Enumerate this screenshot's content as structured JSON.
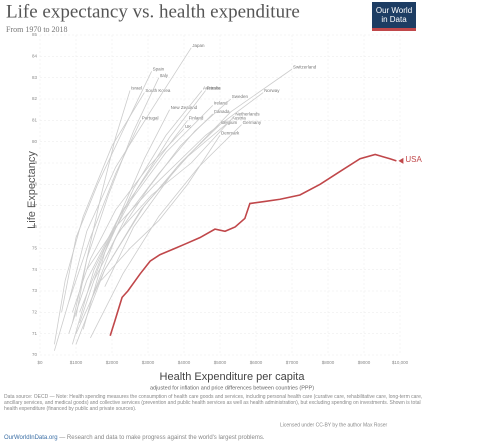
{
  "chart_data": {
    "type": "line",
    "title": "Life expectancy vs. health expenditure",
    "subtitle": "From 1970 to 2018",
    "logo": "Our World in Data",
    "y_label": "Life Expectancy",
    "x_label": "Health Expenditure per capita",
    "x_sublabel": "adjusted for inflation and price differences between countries (PPP)",
    "source": "Data source: OECD — Note: Health spending measures the consumption of health care goods and services, including personal health care (curative care, rehabilitative care, long-term care, ancillary services, and medical goods) and collective services (prevention and public health services as well as health administration), but excluding spending on investments. Shown is total health expenditure (financed by public and private sources).",
    "license": "Licensed under CC-BY by the author Max Roser",
    "footer_site": "OurWorldInData.org",
    "footer_text": " — Research and data to make progress against the world's largest problems.",
    "xlim": [
      0,
      10000
    ],
    "ylim": [
      70,
      85
    ],
    "xticks": [
      {
        "value": 0,
        "label": "$0"
      },
      {
        "value": 1000,
        "label": "$1000"
      },
      {
        "value": 2000,
        "label": "$2000"
      },
      {
        "value": 3000,
        "label": "$3000"
      },
      {
        "value": 4000,
        "label": "$4000"
      },
      {
        "value": 5000,
        "label": "$5000"
      },
      {
        "value": 6000,
        "label": "$6000"
      },
      {
        "value": 7000,
        "label": "$7000"
      },
      {
        "value": 8000,
        "label": "$8000"
      },
      {
        "value": 9000,
        "label": "$9000"
      },
      {
        "value": 10000,
        "label": "$10,000"
      }
    ],
    "yticks": [
      70,
      71,
      72,
      73,
      74,
      75,
      76,
      77,
      78,
      79,
      80,
      81,
      82,
      83,
      84,
      85
    ],
    "grid": true,
    "series": [
      {
        "name": "USA",
        "color": "#c0474a",
        "x": [
          1950,
          2080,
          2280,
          2440,
          2780,
          3060,
          3330,
          3750,
          4030,
          4440,
          4860,
          5140,
          5420,
          5690,
          5830,
          6250,
          6670,
          7220,
          7780,
          8330,
          8890,
          9310,
          9720,
          9900
        ],
        "values": [
          70.9,
          71.6,
          72.7,
          73.0,
          73.8,
          74.4,
          74.7,
          75.0,
          75.2,
          75.5,
          75.9,
          75.8,
          76.0,
          76.4,
          77.1,
          77.2,
          77.3,
          77.5,
          78.0,
          78.6,
          79.2,
          79.4,
          79.2,
          79.1
        ]
      },
      {
        "name": "Japan",
        "color": "#cccccc",
        "x": [
          800,
          1300,
          2100,
          3100,
          4200
        ],
        "values": [
          72.5,
          75.8,
          78.8,
          81.5,
          84.4
        ]
      },
      {
        "name": "Switzerland",
        "color": "#cccccc",
        "x": [
          1800,
          2600,
          3800,
          5300,
          7000
        ],
        "values": [
          73.2,
          76.0,
          78.8,
          81.4,
          83.4
        ]
      },
      {
        "name": "Spain",
        "color": "#cccccc",
        "x": [
          600,
          1000,
          1600,
          2300,
          3100
        ],
        "values": [
          72.0,
          75.5,
          78.0,
          80.5,
          83.3
        ]
      },
      {
        "name": "Italy",
        "color": "#cccccc",
        "x": [
          900,
          1300,
          1900,
          2600,
          3300
        ],
        "values": [
          71.5,
          74.5,
          77.5,
          80.5,
          83.0
        ]
      },
      {
        "name": "Israel",
        "color": "#cccccc",
        "x": [
          1000,
          1300,
          1700,
          2100,
          2500
        ],
        "values": [
          71.8,
          74.5,
          77.5,
          80.2,
          82.4
        ]
      },
      {
        "name": "South Korea",
        "color": "#cccccc",
        "x": [
          400,
          700,
          1200,
          2000,
          2900
        ],
        "values": [
          70.5,
          73.5,
          76.5,
          79.8,
          82.3
        ]
      },
      {
        "name": "Australia",
        "color": "#cccccc",
        "x": [
          1200,
          1800,
          2600,
          3500,
          4500
        ],
        "values": [
          71.2,
          74.8,
          77.8,
          80.3,
          82.4
        ]
      },
      {
        "name": "France",
        "color": "#cccccc",
        "x": [
          1100,
          1800,
          2700,
          3600,
          4600
        ],
        "values": [
          72.0,
          75.0,
          77.8,
          80.2,
          82.4
        ]
      },
      {
        "name": "Norway",
        "color": "#cccccc",
        "x": [
          1300,
          2100,
          3200,
          4600,
          6200
        ],
        "values": [
          74.0,
          76.0,
          78.0,
          80.3,
          82.3
        ]
      },
      {
        "name": "Sweden",
        "color": "#cccccc",
        "x": [
          1800,
          2400,
          3300,
          4300,
          5300
        ],
        "values": [
          74.5,
          76.5,
          78.5,
          80.5,
          82.0
        ]
      },
      {
        "name": "Ireland",
        "color": "#cccccc",
        "x": [
          800,
          1300,
          2200,
          3500,
          4800
        ],
        "values": [
          71.0,
          73.5,
          76.5,
          79.5,
          81.7
        ]
      },
      {
        "name": "Canada",
        "color": "#cccccc",
        "x": [
          1400,
          2100,
          3000,
          3900,
          4800
        ],
        "values": [
          72.5,
          75.5,
          77.8,
          79.8,
          81.3
        ]
      },
      {
        "name": "Netherlands",
        "color": "#cccccc",
        "x": [
          1500,
          2200,
          3100,
          4200,
          5400
        ],
        "values": [
          73.5,
          75.8,
          77.5,
          79.0,
          81.2
        ]
      },
      {
        "name": "New Zealand",
        "color": "#cccccc",
        "x": [
          1100,
          1600,
          2200,
          2900,
          3600
        ],
        "values": [
          71.5,
          74.0,
          76.5,
          79.2,
          81.5
        ]
      },
      {
        "name": "Finland",
        "color": "#cccccc",
        "x": [
          900,
          1500,
          2300,
          3200,
          4100
        ],
        "values": [
          70.5,
          74.0,
          76.8,
          79.0,
          81.0
        ]
      },
      {
        "name": "Austria",
        "color": "#cccccc",
        "x": [
          1000,
          1800,
          2900,
          4100,
          5300
        ],
        "values": [
          70.5,
          74.0,
          77.0,
          79.3,
          81.0
        ]
      },
      {
        "name": "Belgium",
        "color": "#cccccc",
        "x": [
          1000,
          1800,
          2800,
          3900,
          5000
        ],
        "values": [
          71.0,
          74.0,
          76.8,
          79.0,
          80.8
        ]
      },
      {
        "name": "Portugal",
        "color": "#cccccc",
        "x": [
          400,
          800,
          1400,
          2100,
          2800
        ],
        "values": [
          70.2,
          72.5,
          75.5,
          78.5,
          81.0
        ]
      },
      {
        "name": "UK",
        "color": "#cccccc",
        "x": [
          900,
          1400,
          2100,
          3000,
          4000
        ],
        "values": [
          72.0,
          74.5,
          76.8,
          78.8,
          80.6
        ]
      },
      {
        "name": "Germany",
        "color": "#cccccc",
        "x": [
          1400,
          2300,
          3300,
          4400,
          5600
        ],
        "values": [
          70.8,
          73.8,
          76.5,
          78.8,
          80.8
        ]
      },
      {
        "name": "Denmark",
        "color": "#cccccc",
        "x": [
          1700,
          2500,
          3300,
          4100,
          5000
        ],
        "values": [
          73.5,
          75.0,
          76.3,
          78.0,
          80.3
        ]
      }
    ]
  }
}
